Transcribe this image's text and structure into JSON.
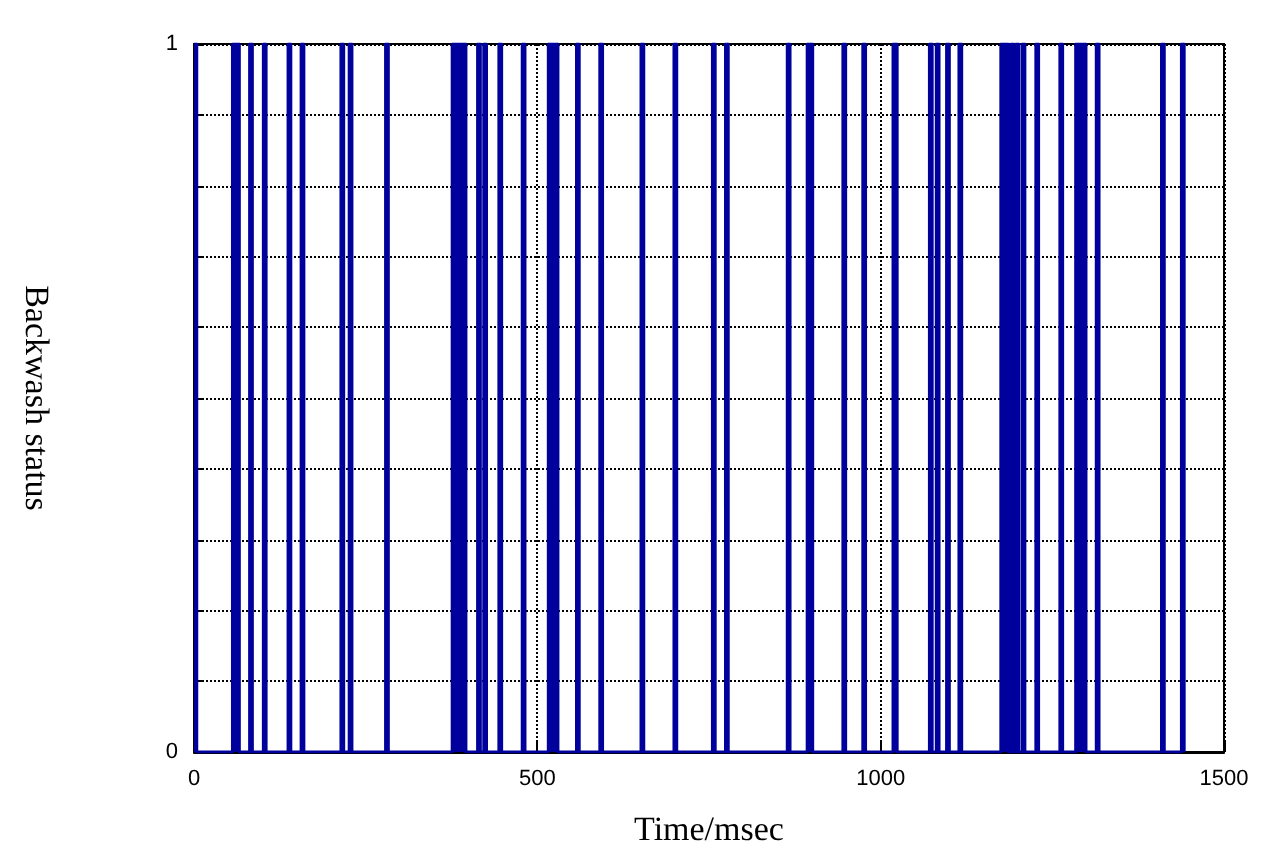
{
  "chart_data": {
    "type": "area",
    "xlabel": "Time/msec",
    "ylabel": "Backwash status",
    "xlim": [
      0,
      1500
    ],
    "xticks": [
      0,
      500,
      1000,
      1500
    ],
    "ylim": [
      0,
      1
    ],
    "yticks": [
      0,
      {
        "value": 0.1,
        "label": null
      },
      {
        "value": 0.2,
        "label": null
      },
      {
        "value": 0.3,
        "label": null
      },
      {
        "value": 0.4,
        "label": null
      },
      {
        "value": 0.5,
        "label": null
      },
      {
        "value": 0.6,
        "label": null
      },
      {
        "value": 0.7,
        "label": null
      },
      {
        "value": 0.8,
        "label": null
      },
      {
        "value": 0.9,
        "label": null
      },
      1
    ],
    "grid": true,
    "line_style": "solid",
    "marker": "none",
    "series": [
      {
        "color": "#00009c",
        "x": [
          0,
          0,
          4,
          4,
          56,
          56,
          66,
          66,
          81,
          81,
          85,
          85,
          101,
          101,
          105,
          105,
          137,
          137,
          141,
          141,
          156,
          156,
          160,
          160,
          214,
          214,
          218,
          218,
          226,
          226,
          230,
          230,
          279,
          279,
          283,
          283,
          376,
          376,
          396,
          396,
          413,
          413,
          417,
          417,
          422,
          422,
          426,
          426,
          444,
          444,
          448,
          448,
          478,
          478,
          482,
          482,
          516,
          516,
          530,
          530,
          557,
          557,
          561,
          561,
          591,
          591,
          595,
          595,
          651,
          651,
          655,
          655,
          699,
          699,
          703,
          703,
          755,
          755,
          759,
          759,
          774,
          774,
          778,
          778,
          864,
          864,
          868,
          868,
          893,
          893,
          901,
          901,
          945,
          945,
          949,
          949,
          974,
          974,
          978,
          978,
          1018,
          1018,
          1024,
          1024,
          1071,
          1071,
          1075,
          1075,
          1081,
          1081,
          1085,
          1085,
          1096,
          1096,
          1100,
          1100,
          1114,
          1114,
          1118,
          1118,
          1175,
          1175,
          1186,
          1186,
          1190,
          1190,
          1194,
          1194,
          1197,
          1197,
          1201,
          1201,
          1206,
          1206,
          1210,
          1210,
          1226,
          1226,
          1230,
          1230,
          1261,
          1261,
          1265,
          1265,
          1284,
          1284,
          1299,
          1299,
          1314,
          1314,
          1318,
          1318,
          1409,
          1409,
          1413,
          1413,
          1438,
          1438,
          1442,
          1442
        ],
        "values": [
          1,
          1,
          1,
          0,
          0,
          1,
          1,
          0,
          0,
          1,
          1,
          0,
          0,
          1,
          1,
          0,
          0,
          1,
          1,
          0,
          0,
          1,
          1,
          0,
          0,
          1,
          1,
          0,
          0,
          1,
          1,
          0,
          0,
          1,
          1,
          0,
          0,
          1,
          1,
          0,
          0,
          1,
          1,
          0,
          0,
          1,
          1,
          0,
          0,
          1,
          1,
          0,
          0,
          1,
          1,
          0,
          0,
          1,
          1,
          0,
          0,
          1,
          1,
          0,
          0,
          1,
          1,
          0,
          0,
          1,
          1,
          0,
          0,
          1,
          1,
          0,
          0,
          1,
          1,
          0,
          0,
          1,
          1,
          0,
          0,
          1,
          1,
          0,
          0,
          1,
          1,
          0,
          0,
          1,
          1,
          0,
          0,
          1,
          1,
          0,
          0,
          1,
          1,
          0,
          0,
          1,
          1,
          0,
          0,
          1,
          1,
          0,
          0,
          1,
          1,
          0,
          0,
          1,
          1,
          0,
          0,
          1,
          1,
          0,
          0,
          1,
          1,
          0,
          0,
          1,
          1,
          0,
          0,
          1,
          1,
          0,
          0,
          1,
          1,
          0,
          0,
          1,
          1,
          0,
          0,
          1,
          1,
          0,
          0,
          1,
          1,
          0,
          0,
          1,
          1,
          0,
          0,
          1,
          1,
          0
        ]
      }
    ]
  }
}
